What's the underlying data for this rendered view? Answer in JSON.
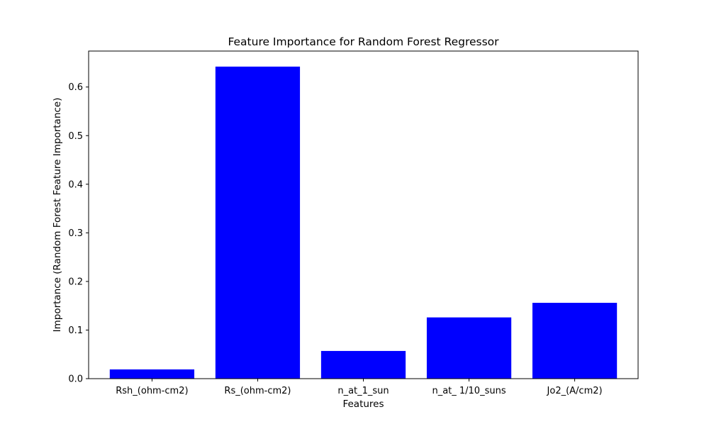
{
  "chart_data": {
    "type": "bar",
    "title": "Feature Importance for Random Forest Regressor",
    "xlabel": "Features",
    "ylabel": "Importance (Random Forest Feature Importance)",
    "categories": [
      "Rsh_(ohm-cm2)",
      "Rs_(ohm-cm2)",
      "n_at_1_sun",
      "n_at_ 1/10_suns",
      "Jo2_(A/cm2)"
    ],
    "values": [
      0.019,
      0.642,
      0.057,
      0.126,
      0.156
    ],
    "ylim": [
      0,
      0.674
    ],
    "yticks": [
      0.0,
      0.1,
      0.2,
      0.3,
      0.4,
      0.5,
      0.6
    ],
    "ytick_labels": [
      "0.0",
      "0.1",
      "0.2",
      "0.3",
      "0.4",
      "0.5",
      "0.6"
    ],
    "bar_color": "#0000ff",
    "grid": false,
    "legend": false
  }
}
